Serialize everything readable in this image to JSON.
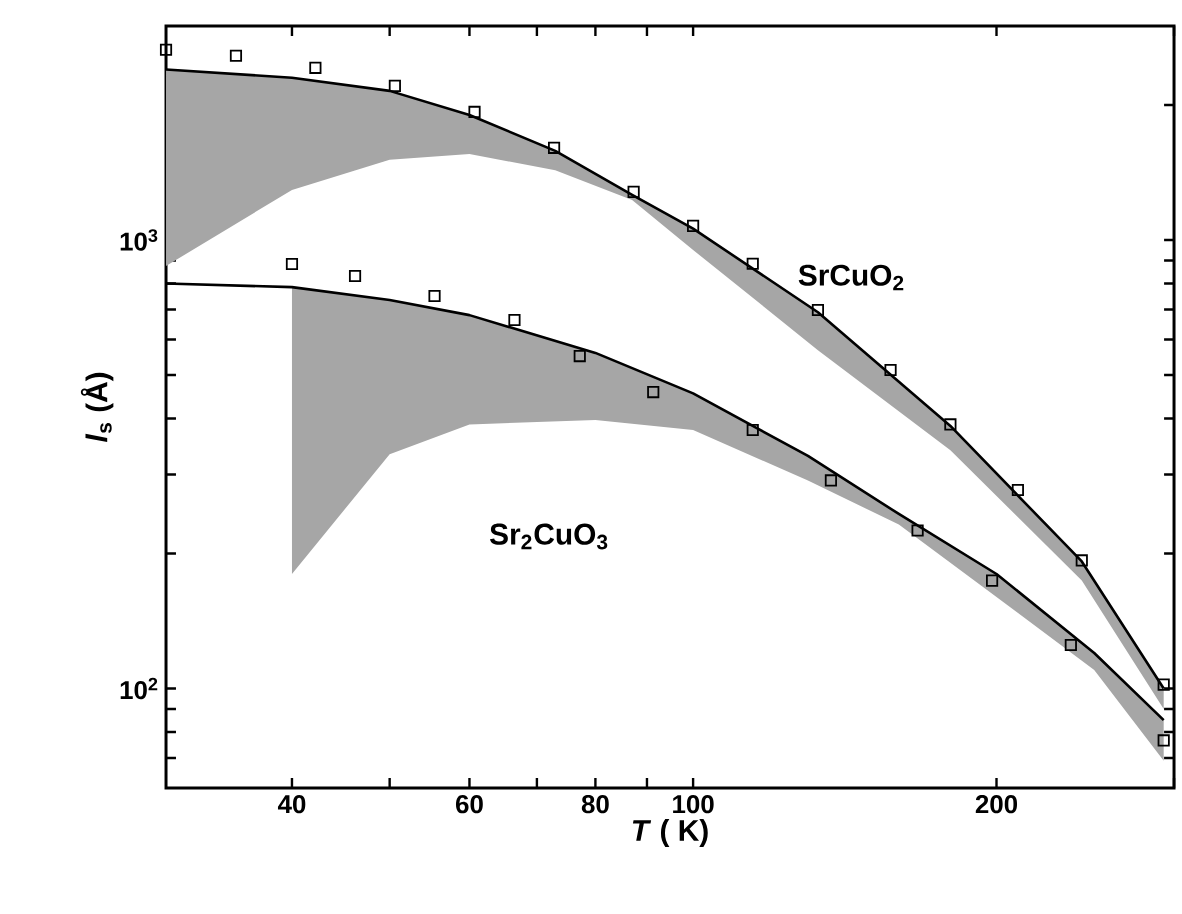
{
  "chart_data": {
    "type": "scatter",
    "xlabel": "*T* ( K)",
    "ylabel": "*l*$_{s}$ (Å)",
    "log": "xy",
    "grid": false,
    "xlim": [
      30,
      300
    ],
    "ylim": [
      60,
      3000
    ],
    "xticks": [
      40,
      {
        "value": 50,
        "label": null
      },
      60,
      {
        "value": 70,
        "label": null
      },
      80,
      {
        "value": 90,
        "label": null
      },
      100,
      200,
      {
        "value": 300,
        "label": null
      }
    ],
    "yticks": [
      {
        "value": 70,
        "label": null
      },
      {
        "value": 80,
        "label": null
      },
      {
        "value": 90,
        "label": null
      },
      {
        "value": 100,
        "label": "10$^{2}$"
      },
      {
        "value": 200,
        "label": null
      },
      {
        "value": 300,
        "label": null
      },
      {
        "value": 400,
        "label": null
      },
      {
        "value": 500,
        "label": null
      },
      {
        "value": 600,
        "label": null
      },
      {
        "value": 700,
        "label": null
      },
      {
        "value": 800,
        "label": null
      },
      {
        "value": 900,
        "label": null
      },
      {
        "value": 1000,
        "label": "10$^{3}$"
      },
      {
        "value": 2000,
        "label": null
      }
    ],
    "series": [
      {
        "type": "line",
        "color": "#000000",
        "marker": "none",
        "line_style": "solid",
        "x": [
          30,
          40,
          50,
          60,
          73,
          87,
          100,
          133,
          180,
          243,
          293
        ],
        "values": [
          2400,
          2300,
          2150,
          1900,
          1580,
          1260,
          1060,
          690,
          385,
          192,
          100
        ],
        "lower": [
          875,
          1293,
          1510,
          1555,
          1430,
          1228,
          950,
          568,
          340,
          174,
          90
        ],
        "upper": [
          2400,
          2300,
          2150,
          1900,
          1580,
          1260,
          1060,
          690,
          385,
          192,
          100
        ]
      },
      {
        "type": "line",
        "color": "#000000",
        "marker": "none",
        "line_style": "solid",
        "x": [
          30,
          40,
          50,
          60,
          80,
          100,
          130,
          160,
          200,
          250,
          293
        ],
        "values": [
          800,
          785,
          735,
          680,
          560,
          455,
          330,
          245,
          180,
          120,
          85
        ],
        "lower": [
          null,
          180,
          333,
          388,
          397,
          377,
          291,
          232,
          160,
          110,
          69
        ],
        "upper": [
          null,
          785,
          735,
          680,
          560,
          455,
          330,
          245,
          180,
          120,
          85
        ]
      },
      {
        "color": "#000000",
        "marker": "square",
        "x": [
          30,
          35.2,
          42.2,
          50.6,
          60.7,
          72.8,
          87.3,
          100,
          114.6,
          133,
          157,
          180,
          210,
          243,
          293
        ],
        "values": [
          2655,
          2575,
          2420,
          2206,
          1930,
          1605,
          1280,
          1075,
          885,
          698,
          513,
          388,
          277,
          193,
          102
        ]
      },
      {
        "color": "#000000",
        "marker": "square",
        "x": [
          40,
          46.2,
          55.4,
          66.5,
          77.2,
          91.3,
          114.6,
          137,
          167,
          198,
          237,
          293
        ],
        "values": [
          884,
          831,
          750,
          663,
          551,
          458,
          377,
          291,
          225,
          174,
          125,
          76.6
        ]
      }
    ],
    "annotations": [
      "SrCuO$_{2}$",
      "Sr$_{2}$CuO$_{3}$"
    ]
  }
}
